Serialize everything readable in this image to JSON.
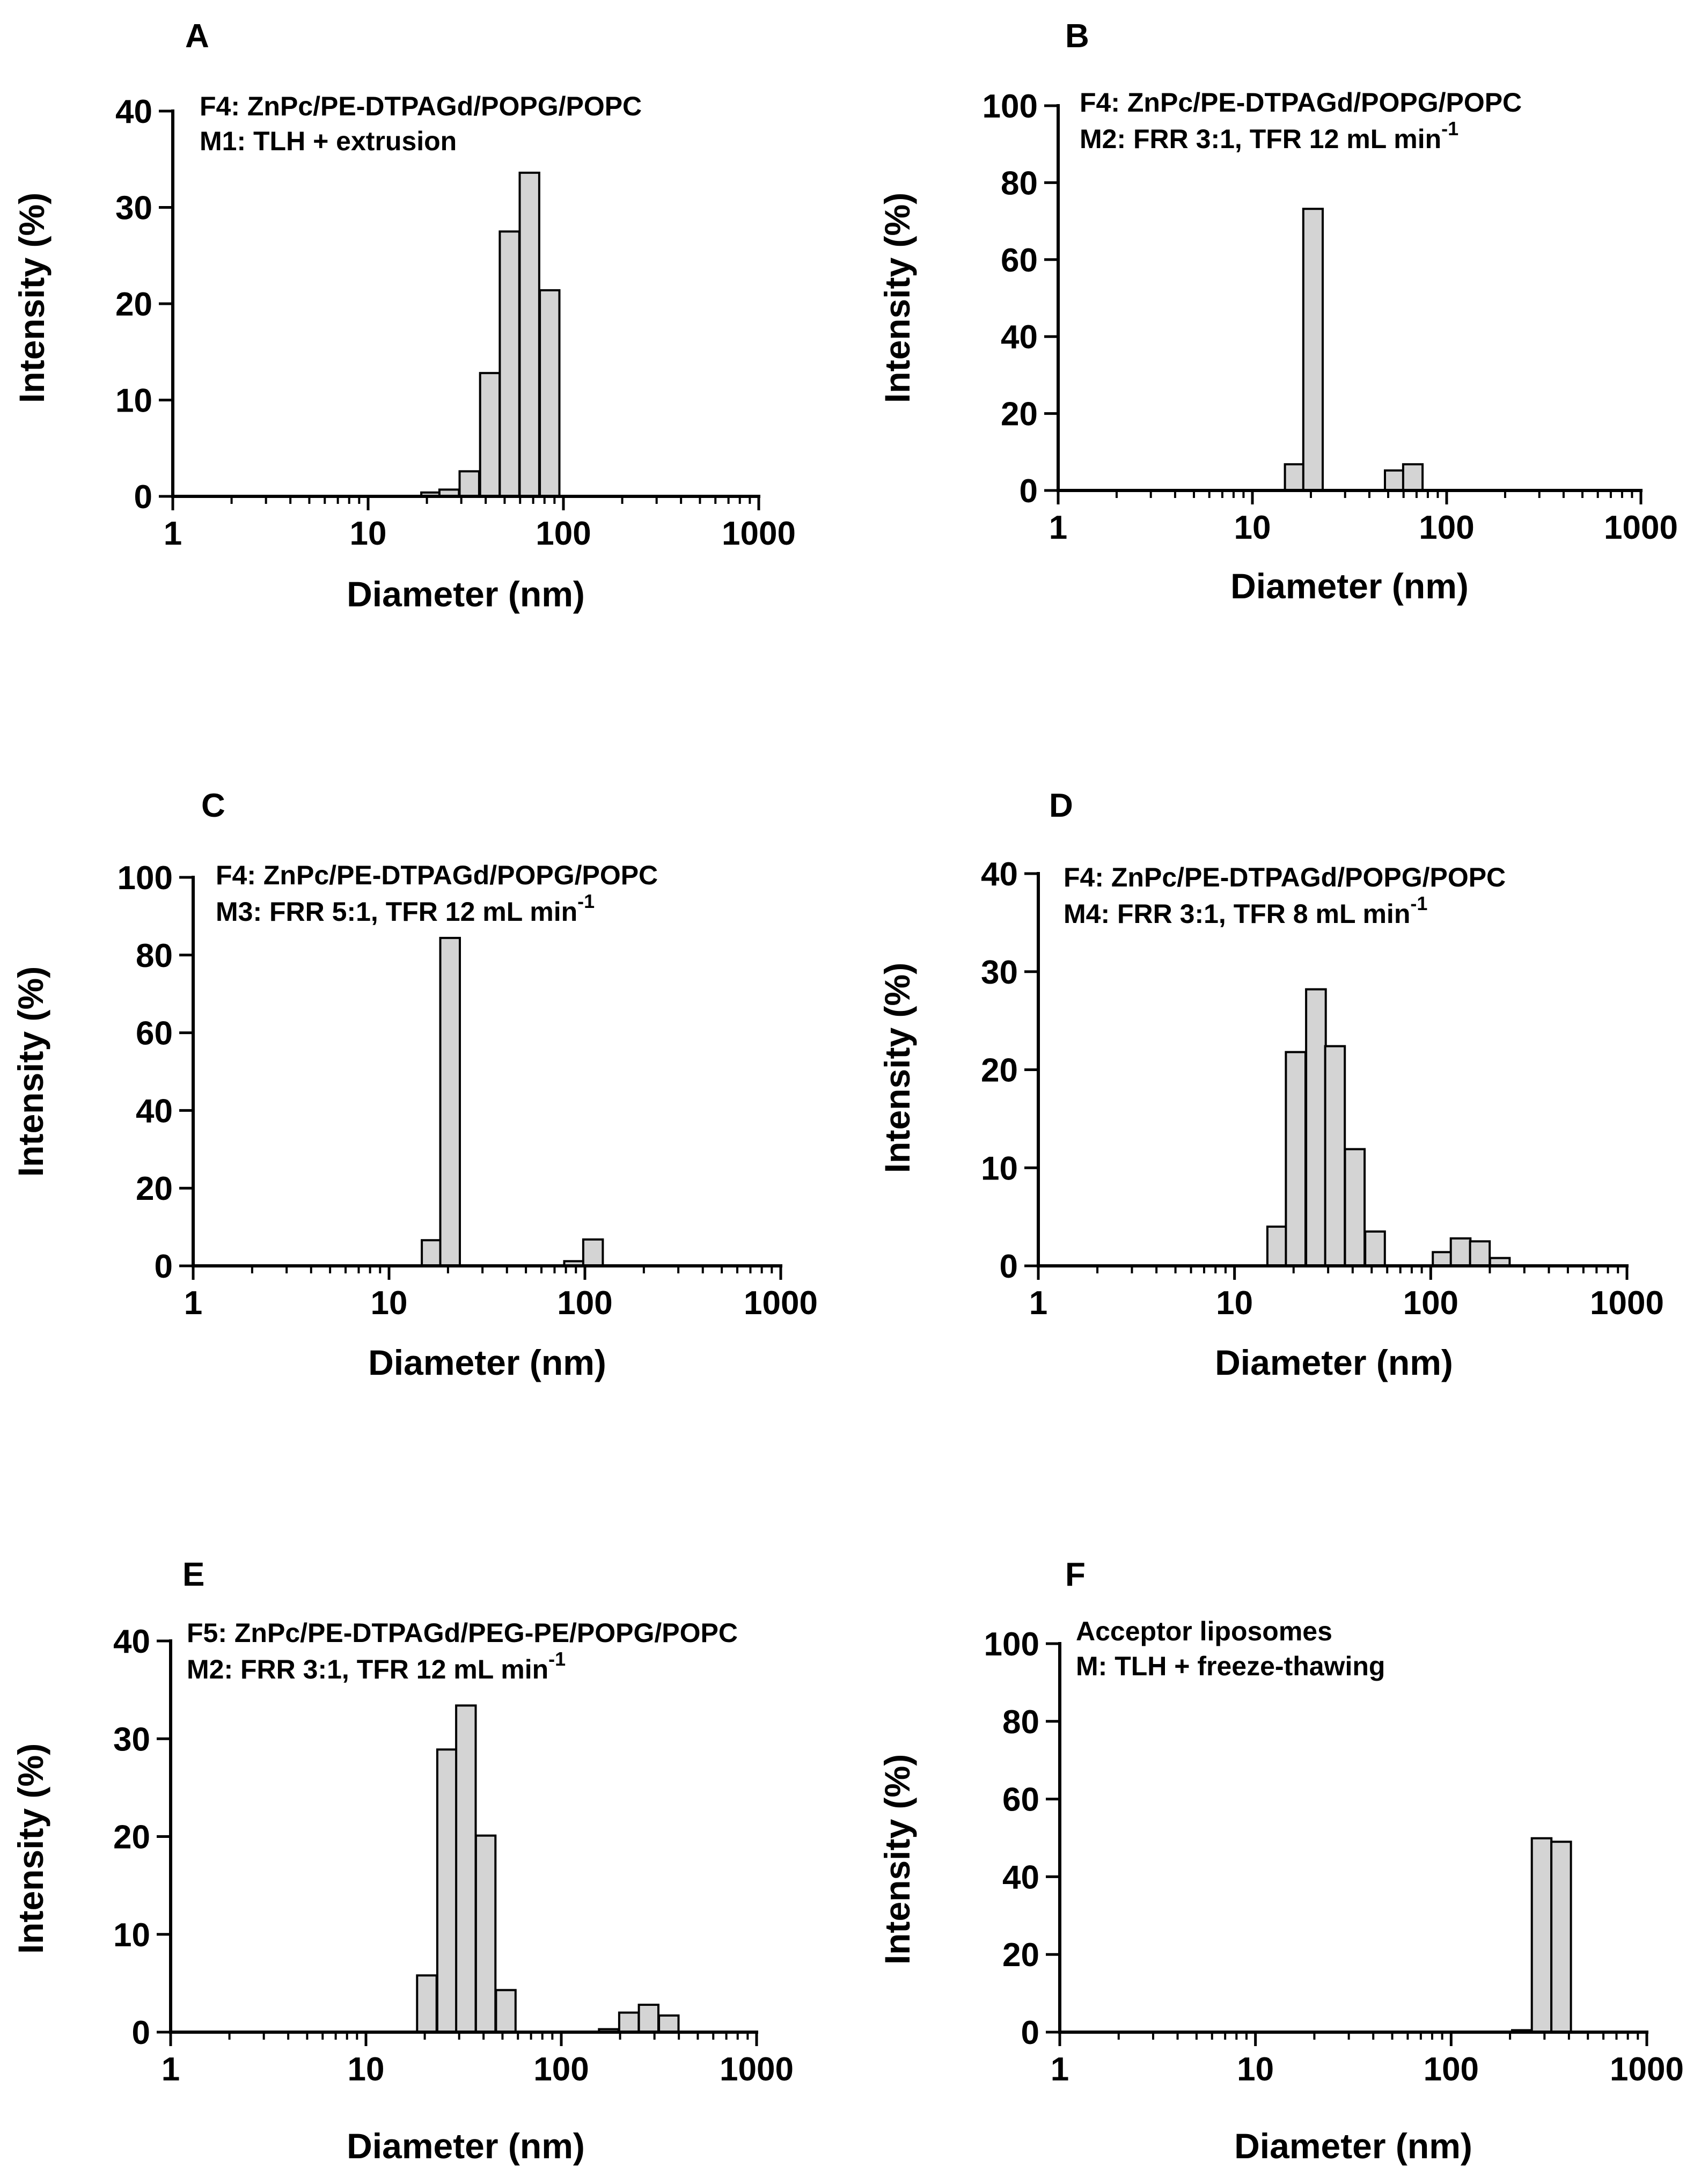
{
  "chart_data": [
    {
      "panel": "A",
      "type": "bar",
      "annotation": [
        "F4: ZnPc/PE-DTPAGd/POPG/POPC",
        "M1: TLH + extrusion"
      ],
      "xlabel": "Diameter (nm)",
      "ylabel": "Intensity (%)",
      "xscale": "log",
      "xlim": [
        1,
        1000
      ],
      "xticks": [
        "1",
        "10",
        "100",
        "1000"
      ],
      "ylim": [
        0,
        40
      ],
      "yticks": [
        "0",
        "10",
        "20",
        "30",
        "40"
      ],
      "x": [
        21,
        26,
        33,
        42,
        53,
        67,
        85
      ],
      "values": [
        0.4,
        0.7,
        2.6,
        12.8,
        27.5,
        33.6,
        21.4
      ]
    },
    {
      "panel": "B",
      "type": "bar",
      "annotation": [
        "F4: ZnPc/PE-DTPAGd/POPG/POPC",
        "M2: FRR 3:1, TFR 12 mL min",
        "-1"
      ],
      "xlabel": "Diameter (nm)",
      "ylabel": "Intensity (%)",
      "xscale": "log",
      "xlim": [
        1,
        1000
      ],
      "xticks": [
        "1",
        "10",
        "100",
        "1000"
      ],
      "ylim": [
        0,
        100
      ],
      "yticks": [
        "0",
        "20",
        "40",
        "60",
        "80",
        "100"
      ],
      "x": [
        16.5,
        20.5,
        54,
        67
      ],
      "values": [
        6.8,
        73.2,
        5.2,
        6.8
      ]
    },
    {
      "panel": "C",
      "type": "bar",
      "annotation": [
        "F4: ZnPc/PE-DTPAGd/POPG/POPC",
        "M3: FRR 5:1, TFR 12 mL min",
        "-1"
      ],
      "xlabel": "Diameter (nm)",
      "ylabel": "Intensity (%)",
      "xscale": "log",
      "xlim": [
        1,
        1000
      ],
      "xticks": [
        "1",
        "10",
        "100",
        "1000"
      ],
      "ylim": [
        0,
        100
      ],
      "yticks": [
        "0",
        "20",
        "40",
        "60",
        "80",
        "100"
      ],
      "x": [
        16.5,
        20.5,
        88,
        110
      ],
      "values": [
        6.6,
        84.4,
        1.2,
        6.8
      ]
    },
    {
      "panel": "D",
      "type": "bar",
      "annotation": [
        "F4: ZnPc/PE-DTPAGd/POPG/POPC",
        "M4: FRR 3:1, TFR 8 mL min",
        "-1"
      ],
      "xlabel": "Diameter (nm)",
      "ylabel": "Intensity (%)",
      "xscale": "log",
      "xlim": [
        1,
        1000
      ],
      "xticks": [
        "1",
        "10",
        "100",
        "1000"
      ],
      "ylim": [
        0,
        40
      ],
      "yticks": [
        "0",
        "10",
        "20",
        "30",
        "40"
      ],
      "x": [
        16.5,
        20.5,
        26,
        32.5,
        41,
        52,
        115,
        142,
        178,
        225
      ],
      "values": [
        4.0,
        21.8,
        28.2,
        22.4,
        11.9,
        3.5,
        1.4,
        2.8,
        2.5,
        0.8
      ]
    },
    {
      "panel": "E",
      "type": "bar",
      "annotation": [
        "F5: ZnPc/PE-DTPAGd/PEG-PE/POPG/POPC",
        "M2: FRR 3:1, TFR 12 mL min",
        "-1"
      ],
      "xlabel": "Diameter (nm)",
      "ylabel": "Intensity (%)",
      "xscale": "log",
      "xlim": [
        1,
        1000
      ],
      "xticks": [
        "1",
        "10",
        "100",
        "1000"
      ],
      "ylim": [
        0,
        40
      ],
      "yticks": [
        "0",
        "10",
        "20",
        "30",
        "40"
      ],
      "x": [
        20.5,
        26,
        32.5,
        41,
        52,
        175,
        222,
        280,
        355
      ],
      "values": [
        5.8,
        28.9,
        33.4,
        20.1,
        4.3,
        0.3,
        2.0,
        2.8,
        1.7
      ]
    },
    {
      "panel": "F",
      "type": "bar",
      "annotation": [
        "Acceptor liposomes",
        "M: TLH + freeze-thawing"
      ],
      "xlabel": "Diameter (nm)",
      "ylabel": "Intensity (%)",
      "xscale": "log",
      "xlim": [
        1,
        1000
      ],
      "xticks": [
        "1",
        "10",
        "100",
        "1000"
      ],
      "ylim": [
        0,
        100
      ],
      "yticks": [
        "0",
        "20",
        "40",
        "60",
        "80",
        "100"
      ],
      "x": [
        230,
        290,
        365
      ],
      "values": [
        0.5,
        49.9,
        49.0
      ]
    }
  ]
}
